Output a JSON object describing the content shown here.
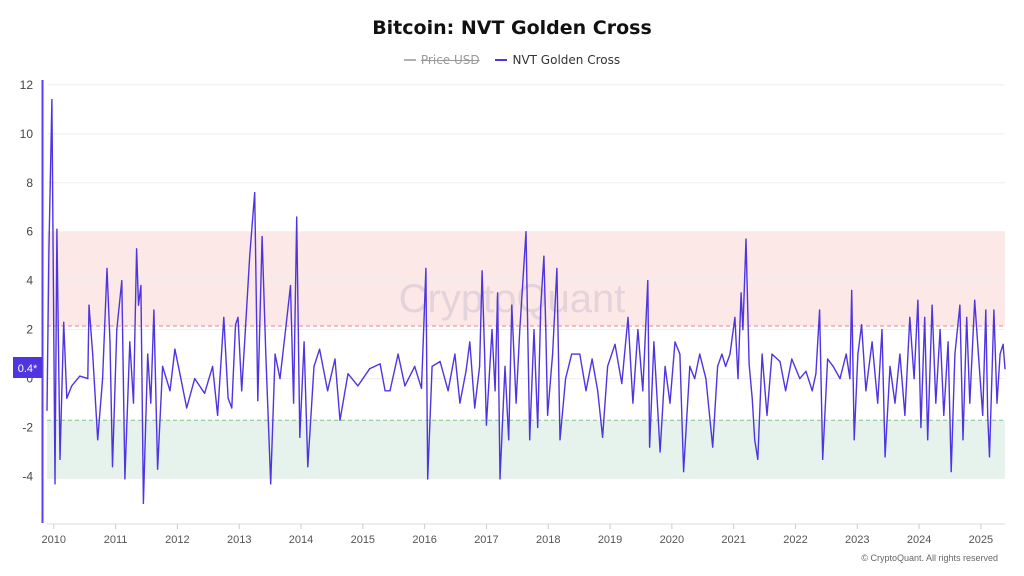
{
  "title": "Bitcoin: NVT Golden Cross",
  "legend": [
    {
      "label": "Price USD",
      "color": "#b0b0b0",
      "hidden": true
    },
    {
      "label": "NVT Golden Cross",
      "color": "#4f35e0",
      "hidden": false
    }
  ],
  "watermark": "CryptoQuant",
  "copyright": "© CryptoQuant. All rights reserved",
  "current_value_label": "0.4*",
  "chart_data": {
    "type": "line",
    "title": "Bitcoin: NVT Golden Cross",
    "xlabel": "",
    "ylabel": "",
    "xlim": [
      2009.89,
      2025.39
    ],
    "ylim": [
      -5.9,
      12.2
    ],
    "y_ticks": [
      "12",
      "10",
      "8",
      "6",
      "4",
      "2",
      "0",
      "-2",
      "-4"
    ],
    "y_tick_values": [
      12,
      10,
      8,
      6,
      4,
      2,
      0,
      -2,
      -4
    ],
    "x_ticks": [
      "2010",
      "2011",
      "2012",
      "2013",
      "2014",
      "2015",
      "2016",
      "2017",
      "2018",
      "2019",
      "2020",
      "2021",
      "2022",
      "2023",
      "2024",
      "2025"
    ],
    "grid": true,
    "bands": [
      {
        "from": 2.15,
        "to": 6,
        "color": "#fce8e6",
        "line_color": "#f08080"
      },
      {
        "from": -4.1,
        "to": -1.7,
        "color": "#e6f2ec",
        "line_color": "#8cc08c"
      }
    ],
    "series": [
      {
        "name": "NVT Golden Cross",
        "color": "#4f35e0",
        "x": [
          2009.89,
          2009.92,
          2009.97,
          2010.02,
          2010.05,
          2010.1,
          2010.16,
          2010.21,
          2010.29,
          2010.42,
          2010.55,
          2010.57,
          2010.63,
          2010.71,
          2010.79,
          2010.86,
          2010.91,
          2010.95,
          2011.02,
          2011.1,
          2011.15,
          2011.23,
          2011.29,
          2011.34,
          2011.37,
          2011.41,
          2011.45,
          2011.52,
          2011.57,
          2011.62,
          2011.68,
          2011.76,
          2011.88,
          2011.96,
          2012.04,
          2012.15,
          2012.28,
          2012.44,
          2012.57,
          2012.65,
          2012.75,
          2012.82,
          2012.88,
          2012.94,
          2012.98,
          2013.04,
          2013.1,
          2013.17,
          2013.25,
          2013.3,
          2013.37,
          2013.43,
          2013.51,
          2013.58,
          2013.66,
          2013.75,
          2013.83,
          2013.88,
          2013.93,
          2013.98,
          2014.05,
          2014.11,
          2014.21,
          2014.3,
          2014.43,
          2014.55,
          2014.63,
          2014.76,
          2014.92,
          2015.11,
          2015.28,
          2015.36,
          2015.44,
          2015.57,
          2015.68,
          2015.84,
          2015.95,
          2016.02,
          2016.05,
          2016.12,
          2016.25,
          2016.38,
          2016.49,
          2016.57,
          2016.67,
          2016.73,
          2016.81,
          2016.89,
          2016.93,
          2016.97,
          2017.0,
          2017.09,
          2017.14,
          2017.18,
          2017.22,
          2017.3,
          2017.36,
          2017.41,
          2017.48,
          2017.54,
          2017.59,
          2017.64,
          2017.7,
          2017.77,
          2017.83,
          2017.88,
          2017.93,
          2017.96,
          2017.99,
          2018.07,
          2018.14,
          2018.19,
          2018.28,
          2018.38,
          2018.51,
          2018.61,
          2018.71,
          2018.8,
          2018.88,
          2018.96,
          2019.08,
          2019.19,
          2019.29,
          2019.37,
          2019.45,
          2019.53,
          2019.61,
          2019.64,
          2019.71,
          2019.81,
          2019.89,
          2019.97,
          2020.05,
          2020.13,
          2020.19,
          2020.29,
          2020.37,
          2020.45,
          2020.55,
          2020.66,
          2020.74,
          2020.81,
          2020.87,
          2020.94,
          2021.02,
          2021.07,
          2021.12,
          2021.15,
          2021.2,
          2021.25,
          2021.3,
          2021.34,
          2021.39,
          2021.46,
          2021.54,
          2021.62,
          2021.75,
          2021.84,
          2021.94,
          2022.07,
          2022.17,
          2022.27,
          2022.33,
          2022.39,
          2022.44,
          2022.52,
          2022.61,
          2022.72,
          2022.82,
          2022.88,
          2022.91,
          2022.95,
          2023.01,
          2023.07,
          2023.14,
          2023.24,
          2023.33,
          2023.4,
          2023.45,
          2023.53,
          2023.61,
          2023.69,
          2023.77,
          2023.85,
          2023.92,
          2023.98,
          2024.03,
          2024.09,
          2024.14,
          2024.21,
          2024.27,
          2024.34,
          2024.4,
          2024.47,
          2024.52,
          2024.58,
          2024.66,
          2024.71,
          2024.77,
          2024.82,
          2024.9,
          2024.96,
          2025.03,
          2025.08,
          2025.11,
          2025.14,
          2025.21,
          2025.26,
          2025.31,
          2025.36,
          2025.39
        ],
        "y": [
          -1.3,
          5.2,
          11.4,
          -4.3,
          6.1,
          -3.3,
          2.3,
          -0.8,
          -0.3,
          0.1,
          0.0,
          3.0,
          1.0,
          -2.5,
          0.0,
          4.5,
          1.5,
          -3.6,
          2.0,
          4.0,
          -4.1,
          1.5,
          -1.0,
          5.3,
          3.0,
          3.8,
          -5.1,
          1.0,
          -1.0,
          2.8,
          -3.7,
          0.5,
          -0.5,
          1.2,
          0.2,
          -1.2,
          0.0,
          -0.6,
          0.5,
          -1.5,
          2.5,
          -0.8,
          -1.2,
          2.2,
          2.5,
          -0.5,
          2.0,
          5.0,
          7.6,
          -0.9,
          5.8,
          1.0,
          -4.3,
          1.0,
          0.0,
          2.0,
          3.8,
          -1.0,
          6.6,
          -2.4,
          1.5,
          -3.6,
          0.5,
          1.2,
          -0.5,
          0.8,
          -1.7,
          0.2,
          -0.3,
          0.4,
          0.6,
          -0.5,
          -0.5,
          1.0,
          -0.3,
          0.5,
          -0.4,
          4.5,
          -4.1,
          0.5,
          0.7,
          -0.5,
          1.0,
          -1.0,
          0.3,
          1.5,
          -1.2,
          0.5,
          4.4,
          1.0,
          -1.9,
          2.0,
          -0.5,
          3.5,
          -4.1,
          0.5,
          -2.5,
          3.0,
          -1.0,
          2.0,
          4.0,
          6.0,
          -2.5,
          2.0,
          -2.0,
          3.0,
          5.0,
          2.0,
          -1.5,
          1.0,
          4.5,
          -2.5,
          0.0,
          1.0,
          1.0,
          -0.5,
          0.8,
          -0.5,
          -2.4,
          0.5,
          1.4,
          -0.2,
          2.5,
          -1.0,
          2.0,
          -0.5,
          4.0,
          -2.8,
          1.5,
          -3.0,
          0.5,
          -1.0,
          1.5,
          1.0,
          -3.8,
          0.5,
          0.0,
          1.0,
          0.0,
          -2.8,
          0.5,
          1.0,
          0.5,
          1.0,
          2.5,
          0.0,
          3.5,
          2.0,
          5.7,
          0.6,
          -0.8,
          -2.5,
          -3.3,
          1.0,
          -1.5,
          1.0,
          0.7,
          -0.5,
          0.8,
          0.0,
          0.3,
          -0.5,
          0.2,
          2.8,
          -3.3,
          0.8,
          0.5,
          0.0,
          1.0,
          0.0,
          3.6,
          -2.5,
          1.0,
          2.2,
          -0.5,
          1.5,
          -1.0,
          2.0,
          -3.2,
          0.5,
          -1.0,
          1.0,
          -1.5,
          2.5,
          0.0,
          3.2,
          -2.0,
          2.5,
          -2.5,
          3.0,
          -1.0,
          2.0,
          -1.5,
          1.5,
          -3.8,
          1.0,
          3.0,
          -2.5,
          2.5,
          -1.0,
          3.2,
          1.0,
          -1.5,
          2.8,
          -1.5,
          -3.2,
          2.8,
          -1.0,
          1.0,
          1.4,
          0.4
        ]
      }
    ]
  }
}
